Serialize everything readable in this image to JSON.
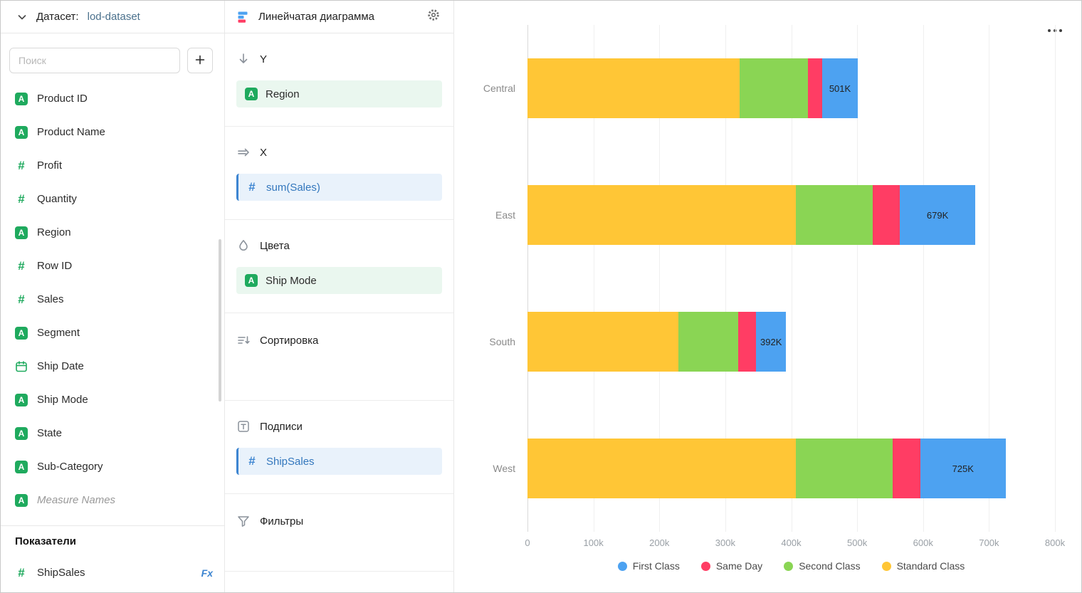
{
  "dataset_panel": {
    "header": {
      "label": "Датасет:",
      "dataset_name": "lod-dataset"
    },
    "search": {
      "placeholder": "Поиск"
    },
    "fields": [
      {
        "name": "Product ID",
        "type": "string"
      },
      {
        "name": "Product Name",
        "type": "string"
      },
      {
        "name": "Profit",
        "type": "number"
      },
      {
        "name": "Quantity",
        "type": "number"
      },
      {
        "name": "Region",
        "type": "string"
      },
      {
        "name": "Row ID",
        "type": "number"
      },
      {
        "name": "Sales",
        "type": "number"
      },
      {
        "name": "Segment",
        "type": "string"
      },
      {
        "name": "Ship Date",
        "type": "date"
      },
      {
        "name": "Ship Mode",
        "type": "string"
      },
      {
        "name": "State",
        "type": "string"
      },
      {
        "name": "Sub-Category",
        "type": "string"
      },
      {
        "name": "Measure Names",
        "type": "string"
      }
    ],
    "measures_section_title": "Показатели",
    "measures": [
      {
        "name": "ShipSales",
        "type": "number",
        "has_formula": true
      }
    ]
  },
  "config_panel": {
    "chart_type_label": "Линейчатая диаграмма",
    "sections": [
      {
        "label": "Y",
        "chips": [
          {
            "text": "Region",
            "kind": "dimension"
          }
        ]
      },
      {
        "label": "X",
        "chips": [
          {
            "text": "sum(Sales)",
            "kind": "measure"
          }
        ]
      },
      {
        "label": "Цвета",
        "chips": [
          {
            "text": "Ship Mode",
            "kind": "dimension"
          }
        ]
      },
      {
        "label": "Сортировка",
        "chips": []
      },
      {
        "label": "Подписи",
        "chips": [
          {
            "text": "ShipSales",
            "kind": "measure"
          }
        ]
      },
      {
        "label": "Фильтры",
        "chips": []
      }
    ]
  },
  "icons": {
    "fx": "Fx"
  },
  "colors": {
    "dimension_green": "#1faa5e",
    "measure_blue": "#3d85d1",
    "chip_green_bg": "#eaf7ef",
    "chip_blue_bg": "#e9f2fb"
  },
  "chart_data": {
    "type": "bar",
    "orientation": "horizontal",
    "stacked": true,
    "categories": [
      "Central",
      "East",
      "South",
      "West"
    ],
    "series": [
      {
        "name": "Standard Class",
        "color": "#FFC636",
        "values": [
          322000,
          407000,
          229000,
          407000
        ]
      },
      {
        "name": "Second Class",
        "color": "#8AD554",
        "values": [
          103000,
          117000,
          91000,
          147000
        ]
      },
      {
        "name": "Same Day",
        "color": "#FF3D64",
        "values": [
          22000,
          41000,
          27000,
          42000
        ]
      },
      {
        "name": "First Class",
        "color": "#4DA2F1",
        "values": [
          54000,
          114000,
          45000,
          129000
        ]
      }
    ],
    "total_labels": [
      "501K",
      "679K",
      "392K",
      "725K"
    ],
    "xlim": [
      0,
      800000
    ],
    "x_ticks": [
      "0",
      "100k",
      "200k",
      "300k",
      "400k",
      "500k",
      "600k",
      "700k",
      "800k"
    ],
    "grid": true,
    "legend_position": "bottom",
    "legend": [
      {
        "name": "First Class",
        "color": "#4DA2F1"
      },
      {
        "name": "Same Day",
        "color": "#FF3D64"
      },
      {
        "name": "Second Class",
        "color": "#8AD554"
      },
      {
        "name": "Standard Class",
        "color": "#FFC636"
      }
    ]
  }
}
